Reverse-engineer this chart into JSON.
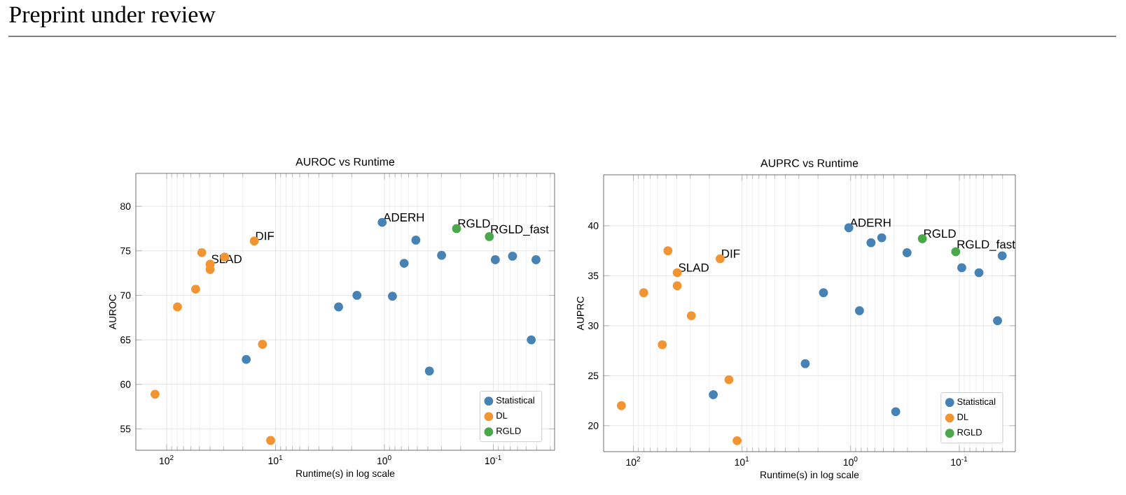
{
  "chart_data": [
    {
      "type": "scatter",
      "title": "AUROC vs Runtime",
      "xlabel": "Runtime(s) in log scale",
      "ylabel": "AUROC",
      "log": "x",
      "grid": true,
      "legend": "bottom right",
      "marker": "circle",
      "xlim": [
        192,
        0.0274
      ],
      "ylim": [
        52.6,
        83.7
      ],
      "xticks": [
        {
          "value": 100,
          "label": "10$^{2}$"
        },
        {
          "value": 10,
          "label": "10$^{1}$"
        },
        {
          "value": 1,
          "label": "10$^{0}$"
        },
        {
          "value": 0.1,
          "label": "10$^{-1}$"
        }
      ],
      "yticks": [
        55,
        60,
        65,
        70,
        75,
        80
      ],
      "series": [
        {
          "name": "Statistical",
          "color": "#4682b4",
          "x": [
            18.6,
            2.64,
            1.79,
            1.05,
            0.845,
            0.66,
            0.515,
            0.387,
            0.299,
            0.096,
            0.0667,
            0.0449,
            0.0406
          ],
          "values": [
            62.8,
            68.7,
            70.0,
            78.2,
            69.9,
            73.6,
            76.2,
            61.5,
            74.5,
            74.0,
            74.4,
            65.0,
            74.0
          ]
        },
        {
          "name": "DL",
          "color": "#f39433",
          "x": [
            128,
            79.6,
            54.2,
            47.6,
            39.9,
            39.9,
            29.4,
            15.7,
            13.2,
            11.1
          ],
          "values": [
            58.9,
            68.7,
            70.7,
            74.8,
            73.5,
            72.9,
            74.3,
            76.1,
            64.5,
            53.7
          ]
        },
        {
          "name": "RGLD",
          "color": "#4aa84a",
          "x": [
            0.218,
            0.109
          ],
          "values": [
            77.5,
            76.6
          ]
        }
      ],
      "annotations": [
        "Preprint under review",
        {
          "text": "SLAD",
          "x": 39.9,
          "y": 73.5
        },
        {
          "text": "DIF",
          "x": 15.7,
          "y": 76.1
        },
        {
          "text": "ADERH",
          "x": 1.05,
          "y": 78.2
        },
        {
          "text": "RGLD",
          "x": 0.218,
          "y": 77.5
        },
        {
          "text": "RGLD_fast",
          "x": 0.109,
          "y": 76.6
        }
      ]
    },
    {
      "type": "scatter",
      "title": "AUPRC vs Runtime",
      "xlabel": "Runtime(s) in log scale",
      "ylabel": "AUPRC",
      "log": "x",
      "grid": true,
      "legend": "bottom right",
      "marker": "circle",
      "xlim": [
        188,
        0.0305
      ],
      "ylim": [
        17.4,
        45.1
      ],
      "xticks": [
        {
          "value": 100,
          "label": "10$^{2}$"
        },
        {
          "value": 10,
          "label": "10$^{1}$"
        },
        {
          "value": 1,
          "label": "10$^{0}$"
        },
        {
          "value": 0.1,
          "label": "10$^{-1}$"
        }
      ],
      "yticks": [
        20,
        25,
        30,
        35,
        40
      ],
      "series": [
        {
          "name": "Statistical",
          "color": "#4682b4",
          "x": [
            18.4,
            2.62,
            1.78,
            1.04,
            0.83,
            0.65,
            0.518,
            0.385,
            0.303,
            0.095,
            0.066,
            0.0445,
            0.0403
          ],
          "values": [
            23.1,
            26.2,
            33.3,
            39.8,
            31.5,
            38.3,
            38.8,
            21.4,
            37.3,
            35.8,
            35.3,
            30.5,
            37.0
          ]
        },
        {
          "name": "DL",
          "color": "#f39433",
          "x": [
            129,
            80.4,
            54.2,
            48.1,
            39.5,
            39.5,
            29.3,
            15.9,
            13.2,
            11.1
          ],
          "values": [
            22.0,
            33.3,
            28.1,
            37.5,
            35.3,
            34.0,
            31.0,
            36.7,
            24.6,
            18.5
          ]
        },
        {
          "name": "RGLD",
          "color": "#4aa84a",
          "x": [
            0.219,
            0.108
          ],
          "values": [
            38.7,
            37.4
          ]
        }
      ],
      "annotations": [
        {
          "text": "SLAD",
          "x": 39.5,
          "y": 35.3
        },
        {
          "text": "DIF",
          "x": 15.9,
          "y": 36.7
        },
        {
          "text": "ADERH",
          "x": 1.04,
          "y": 39.8
        },
        {
          "text": "RGLD",
          "x": 0.219,
          "y": 38.7
        },
        {
          "text": "RGLD_fast",
          "x": 0.108,
          "y": 37.4
        }
      ]
    }
  ]
}
